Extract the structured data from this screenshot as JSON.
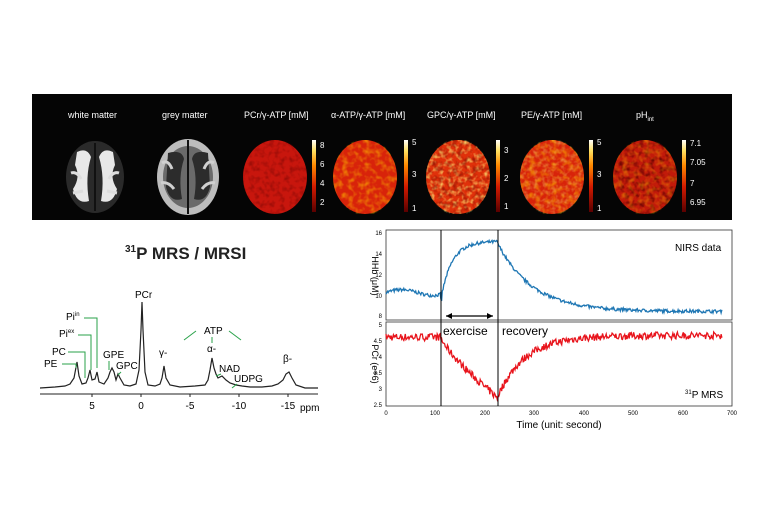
{
  "panels": [
    {
      "title": "white matter",
      "title_sub": ""
    },
    {
      "title": "grey matter",
      "title_sub": ""
    },
    {
      "title": "PCr/γ-ATP [mM]",
      "title_sub": ""
    },
    {
      "title": "α-ATP/γ-ATP [mM]",
      "title_sub": ""
    },
    {
      "title": "GPC/γ-ATP [mM]",
      "title_sub": ""
    },
    {
      "title": "PE/γ-ATP [mM]",
      "title_sub": ""
    },
    {
      "title": "pH",
      "title_sub": "int"
    }
  ],
  "colorbars": {
    "pcr": [
      "8",
      "6",
      "4",
      "2"
    ],
    "atp": [
      "5",
      "3",
      "1"
    ],
    "gpc": [
      "3",
      "2",
      "1"
    ],
    "pe": [
      "5",
      "3",
      "1"
    ],
    "ph": [
      "7.1",
      "7.05",
      "7",
      "6.95"
    ]
  },
  "spectrum": {
    "heading_sup": "31",
    "heading": "P MRS / MRSI",
    "peaks": {
      "pcr": "PCr",
      "gamma": "γ-",
      "atp": "ATP",
      "alpha": "α-",
      "beta": "β-",
      "pi_in": "Pi",
      "pi_in_sup": "in",
      "pi_ex": "Pi",
      "pi_ex_sup": "ex",
      "pc": "PC",
      "pe": "PE",
      "gpe": "GPE",
      "gpc": "GPC",
      "nad": "NAD",
      "udpg": "UDPG"
    },
    "xticks": [
      "5",
      "0",
      "-5",
      "-10",
      "-15"
    ],
    "xunit": "ppm"
  },
  "timeseries": {
    "top": {
      "ylabel": "HHb (μM)",
      "legend": "NIRS data",
      "yticks": [
        "16",
        "14",
        "12",
        "10",
        "8"
      ]
    },
    "bottom": {
      "ylabel": "PCr (e+6)",
      "legend_sup": "31",
      "legend": "P MRS",
      "yticks": [
        "5",
        "4.5",
        "4",
        "3.5",
        "3",
        "2.5"
      ]
    },
    "xticks": [
      "0",
      "100",
      "200",
      "300",
      "400",
      "500",
      "600",
      "700"
    ],
    "xlabel": "Time (unit: second)",
    "exercise_label": "exercise",
    "recovery_label": "recovery",
    "colors": {
      "nirs": "#1f77b4",
      "mrs": "#e8141c"
    }
  }
}
